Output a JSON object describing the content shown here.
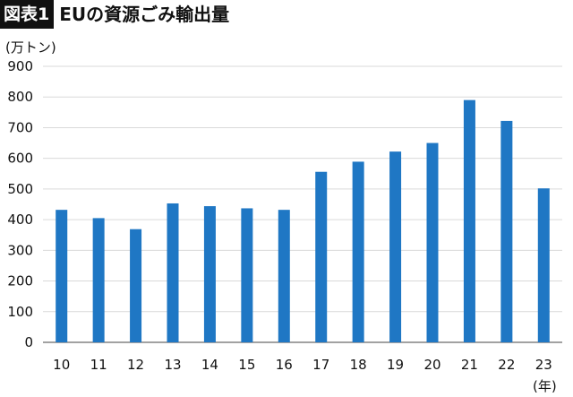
{
  "header": {
    "badge": "図表1",
    "title": "EUの資源ごみ輸出量"
  },
  "chart_data": {
    "type": "bar",
    "title": "EUの資源ごみ輸出量",
    "y_unit": "(万トン)",
    "x_unit": "(年)",
    "categories": [
      "10",
      "11",
      "12",
      "13",
      "14",
      "15",
      "16",
      "17",
      "18",
      "19",
      "20",
      "21",
      "22",
      "23"
    ],
    "values": [
      432,
      405,
      369,
      453,
      444,
      437,
      432,
      556,
      589,
      622,
      650,
      790,
      722,
      502
    ],
    "ylim": [
      0,
      900
    ],
    "yticks": [
      0,
      100,
      200,
      300,
      400,
      500,
      600,
      700,
      800,
      900
    ],
    "grid": true,
    "bar_color": "#1f77c4",
    "grid_color": "#d9d9d9"
  }
}
